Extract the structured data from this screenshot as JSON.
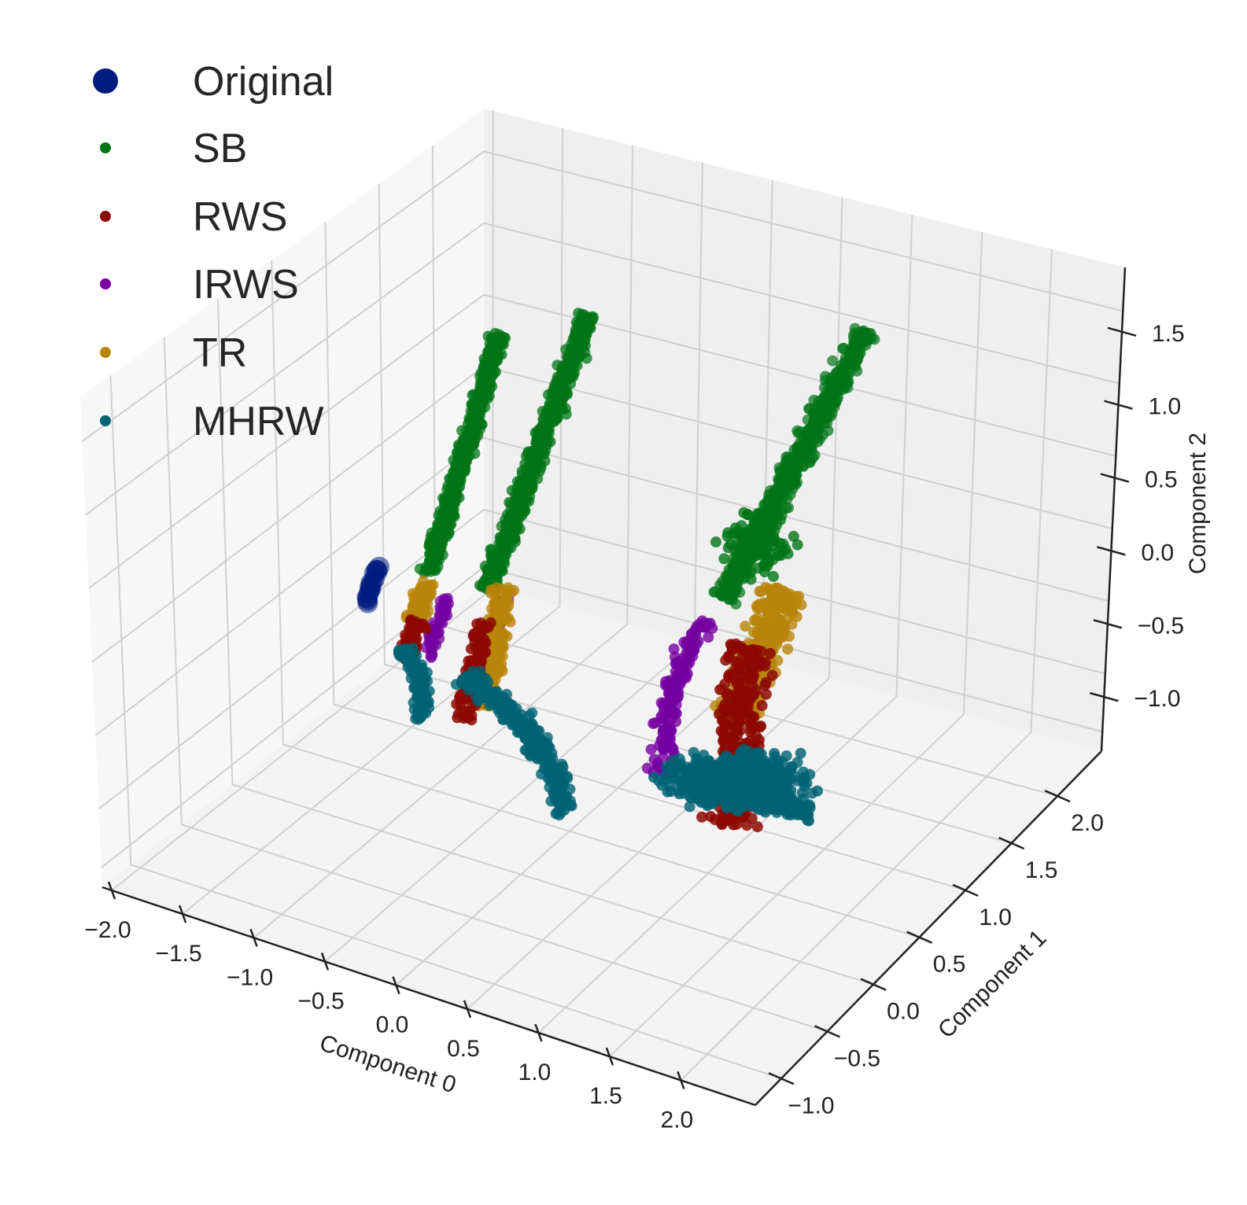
{
  "chart_data": {
    "type": "scatter3d",
    "title": "",
    "xlabel": "Component 0",
    "ylabel": "Component 1",
    "zlabel": "Component 2",
    "x_ticks": [
      "−2.0",
      "−1.5",
      "−1.0",
      "−0.5",
      "0.0",
      "0.5",
      "1.0",
      "1.5",
      "2.0"
    ],
    "y_ticks": [
      "−1.0",
      "−0.5",
      "0.0",
      "0.5",
      "1.0",
      "1.5",
      "2.0"
    ],
    "z_ticks": [
      "−1.0",
      "−0.5",
      "0.0",
      "0.5",
      "1.0",
      "1.5"
    ],
    "legend_position": "top-left",
    "grid": true,
    "series": [
      {
        "name": "Original",
        "color": "#001c7f"
      },
      {
        "name": "SB",
        "color": "#017517"
      },
      {
        "name": "RWS",
        "color": "#8c0800"
      },
      {
        "name": "IRWS",
        "color": "#7600a1"
      },
      {
        "name": "TR",
        "color": "#b8850a"
      },
      {
        "name": "MHRW",
        "color": "#006374"
      }
    ]
  }
}
